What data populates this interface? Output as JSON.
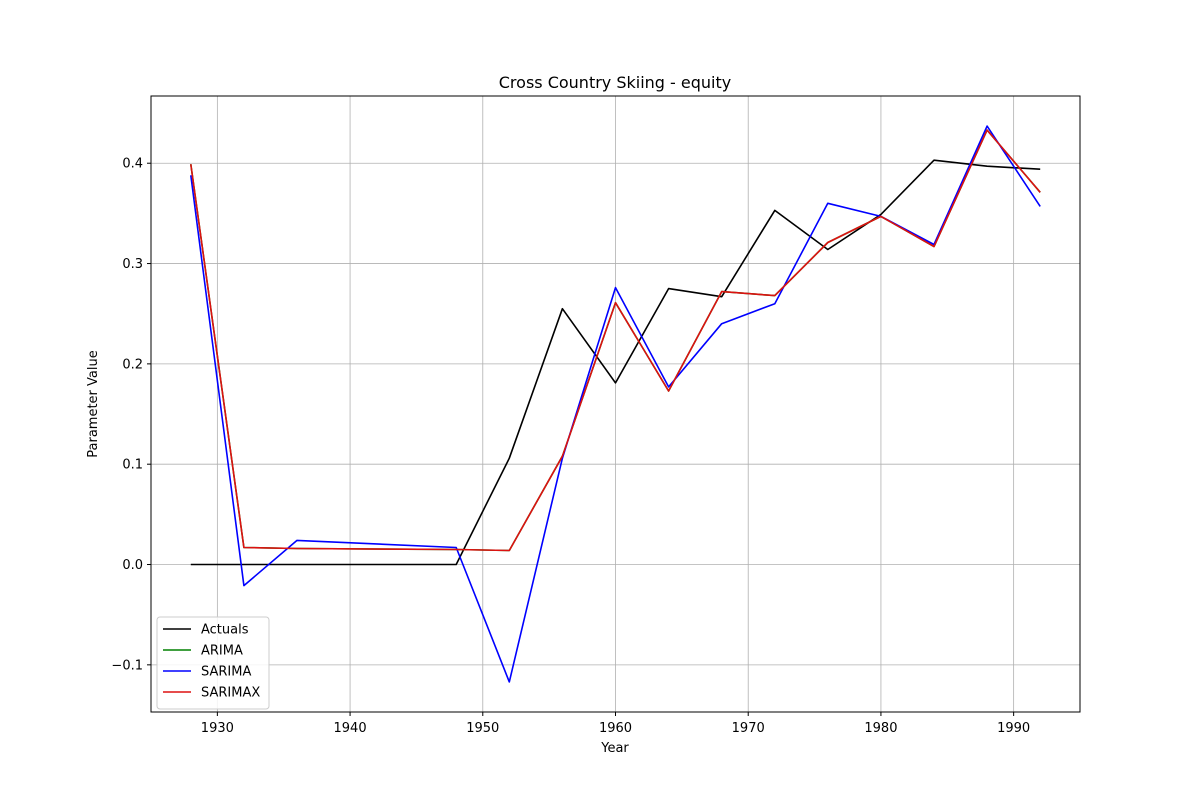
{
  "chart_data": {
    "type": "line",
    "title": "Cross Country Skiing - equity",
    "xlabel": "Year",
    "ylabel": "Parameter Value",
    "xlim": [
      1925,
      1995
    ],
    "ylim": [
      -0.147,
      0.467
    ],
    "xticks": [
      1930,
      1940,
      1950,
      1960,
      1970,
      1980,
      1990
    ],
    "yticks": [
      -0.1,
      0.0,
      0.1,
      0.2,
      0.3,
      0.4
    ],
    "ytick_labels": [
      "−0.1",
      "0.0",
      "0.1",
      "0.2",
      "0.3",
      "0.4"
    ],
    "grid": true,
    "legend_position": "lower-left",
    "series": [
      {
        "name": "Actuals",
        "color": "#000000",
        "x": [
          1928,
          1932,
          1936,
          1948,
          1952,
          1956,
          1960,
          1964,
          1968,
          1972,
          1976,
          1980,
          1984,
          1988,
          1992
        ],
        "y": [
          0.0,
          0.0,
          0.0,
          0.0,
          0.106,
          0.255,
          0.181,
          0.275,
          0.267,
          0.353,
          0.314,
          0.349,
          0.403,
          0.397,
          0.394
        ]
      },
      {
        "name": "ARIMA",
        "color": "#008000",
        "x": [
          1928,
          1932,
          1936,
          1948,
          1952,
          1956,
          1960,
          1964,
          1968,
          1972,
          1976,
          1980,
          1984,
          1988,
          1992
        ],
        "y": [
          0.399,
          0.017,
          0.016,
          0.015,
          0.014,
          0.108,
          0.261,
          0.173,
          0.272,
          0.268,
          0.321,
          0.347,
          0.317,
          0.433,
          0.371
        ]
      },
      {
        "name": "SARIMA",
        "color": "#0000ff",
        "x": [
          1928,
          1932,
          1936,
          1948,
          1952,
          1956,
          1960,
          1964,
          1968,
          1972,
          1976,
          1980,
          1984,
          1988,
          1992
        ],
        "y": [
          0.388,
          -0.021,
          0.024,
          0.017,
          -0.117,
          0.106,
          0.276,
          0.177,
          0.24,
          0.26,
          0.36,
          0.347,
          0.319,
          0.437,
          0.357
        ]
      },
      {
        "name": "SARIMAX",
        "color": "#dd1111",
        "x": [
          1928,
          1932,
          1936,
          1948,
          1952,
          1956,
          1960,
          1964,
          1968,
          1972,
          1976,
          1980,
          1984,
          1988,
          1992
        ],
        "y": [
          0.399,
          0.017,
          0.016,
          0.015,
          0.014,
          0.108,
          0.261,
          0.173,
          0.272,
          0.268,
          0.321,
          0.347,
          0.317,
          0.433,
          0.371
        ]
      }
    ]
  }
}
